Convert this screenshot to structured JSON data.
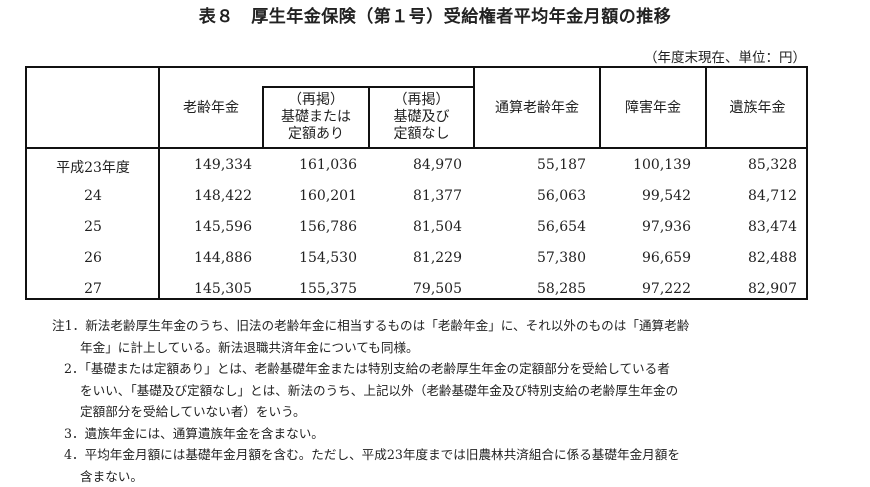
{
  "title": "表８　厚生年金保険（第１号）受給権者平均年金月額の推移",
  "unit_note": "（年度末現在、単位：円）",
  "headers": {
    "rourei": "老齢年金",
    "sub1_a": "（再掲）",
    "sub1_b": "基礎または",
    "sub1_c": "定額あり",
    "sub2_a": "（再掲）",
    "sub2_b": "基礎及び",
    "sub2_c": "定額なし",
    "tsusan": "通算老齢年金",
    "shogai": "障害年金",
    "izoku": "遺族年金"
  },
  "rows": [
    {
      "year": "平成23年度",
      "rourei": "149,334",
      "kiso_ari": "161,036",
      "kiso_nashi": "84,970",
      "tsusan": "55,187",
      "shogai": "100,139",
      "izoku": "85,328"
    },
    {
      "year": "24",
      "rourei": "148,422",
      "kiso_ari": "160,201",
      "kiso_nashi": "81,377",
      "tsusan": "56,063",
      "shogai": "99,542",
      "izoku": "84,712"
    },
    {
      "year": "25",
      "rourei": "145,596",
      "kiso_ari": "156,786",
      "kiso_nashi": "81,504",
      "tsusan": "56,654",
      "shogai": "97,936",
      "izoku": "83,474"
    },
    {
      "year": "26",
      "rourei": "144,886",
      "kiso_ari": "154,530",
      "kiso_nashi": "81,229",
      "tsusan": "57,380",
      "shogai": "96,659",
      "izoku": "82,488"
    },
    {
      "year": "27",
      "rourei": "145,305",
      "kiso_ari": "155,375",
      "kiso_nashi": "79,505",
      "tsusan": "58,285",
      "shogai": "97,222",
      "izoku": "82,907"
    }
  ],
  "notes": [
    "注1．新法老齢厚生年金のうち、旧法の老齢年金に相当するものは「老齢年金」に、それ以外のものは「通算老齢",
    "年金」に計上している。新法退職共済年金についても同様。",
    "2．「基礎または定額あり」とは、老齢基礎年金または特別支給の老齢厚生年金の定額部分を受給している者",
    "をいい、「基礎及び定額なし」とは、新法のうち、上記以外（老齢基礎年金及び特別支給の老齢厚生年金の",
    "定額部分を受給していない者）をいう。",
    "3．遺族年金には、通算遺族年金を含まない。",
    "4．平均年金月額には基礎年金月額を含む。ただし、平成23年度までは旧農林共済組合に係る基礎年金月額を",
    "含まない。"
  ]
}
